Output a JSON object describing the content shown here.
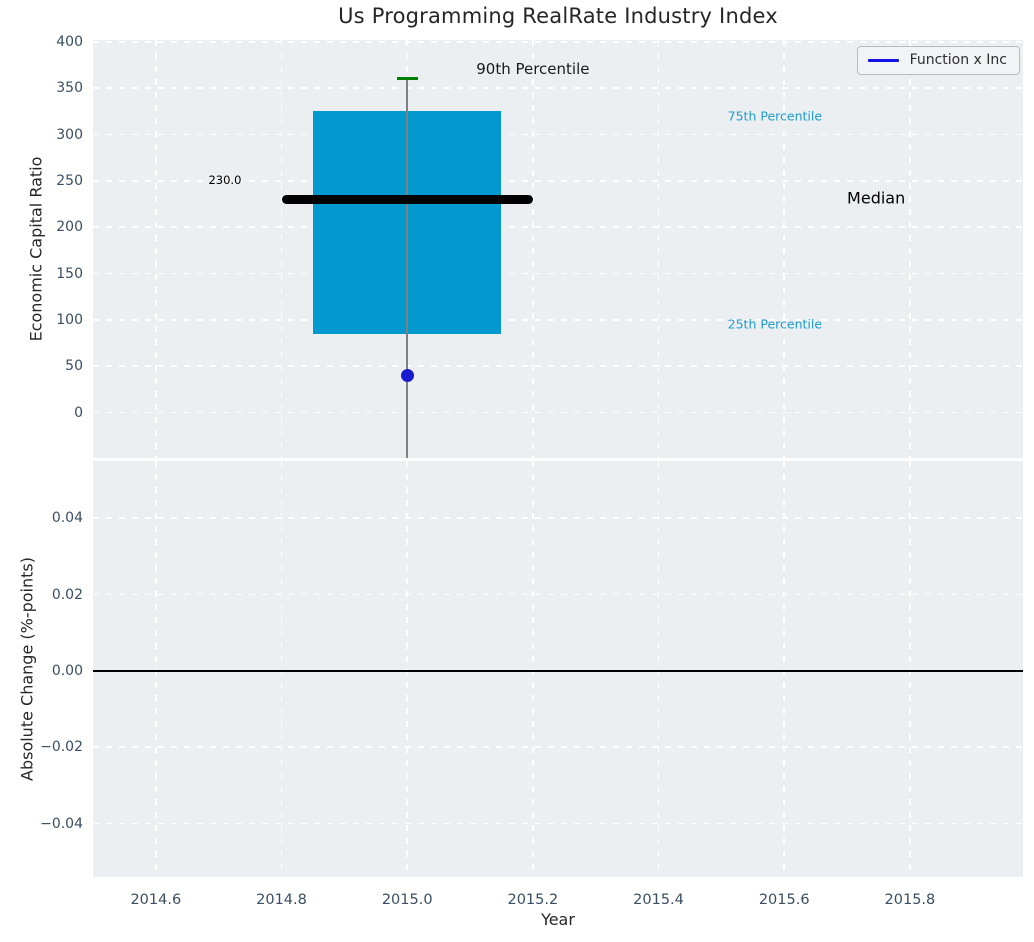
{
  "title": "Us Programming RealRate Industry Index",
  "legend": {
    "label": "Function x Inc"
  },
  "colors": {
    "figure_bg": "#ffffff",
    "axes_bg": "#eceff1",
    "grid": "#ffffff",
    "tick_label": "#3a4e63",
    "axis_label": "#262626",
    "title": "#262626",
    "box_fill": "#0499ce",
    "percentile_label": "#1e9ccd",
    "whisker": "#808080",
    "cap_green": "#008000",
    "median_line": "#000000",
    "company_dot": "#1a1ad1",
    "legend_line": "#1212e6",
    "zero_line": "#000000"
  },
  "chart_data": [
    {
      "type": "boxplot",
      "title": "Us Programming RealRate Industry Index",
      "ylabel": "Economic Capital Ratio",
      "xlim": [
        2014.5,
        2015.98
      ],
      "ylim": [
        -49,
        402
      ],
      "yticks": [
        400,
        350,
        300,
        250,
        200,
        150,
        100,
        50,
        0
      ],
      "ytick_labels": [
        "400",
        "350",
        "300",
        "250",
        "200",
        "150",
        "100",
        "50",
        "0"
      ],
      "xticks": [
        2014.6,
        2014.8,
        2015.0,
        2015.2,
        2015.4,
        2015.6,
        2015.8
      ],
      "grid": true,
      "legend_position": "upper right",
      "box": {
        "x": 2015.0,
        "q1": 85,
        "median": 230,
        "q3": 325,
        "p90": 360,
        "box_half_width": 0.15,
        "median_half_width": 0.2,
        "whisker_clipped_at_axis_bottom": true
      },
      "company_point": {
        "name": "Function x Inc",
        "x": 2015.0,
        "y": 40
      },
      "annotations": [
        {
          "id": "p90-label",
          "text": "90th Percentile",
          "x": 2015.2,
          "y": 371,
          "size": 15,
          "color": "#1a1a1a",
          "align": "center"
        },
        {
          "id": "p75-label",
          "text": "75th Percentile",
          "x": 2015.51,
          "y": 320,
          "size": 12.5,
          "color": "#1e9ccd",
          "align": "left"
        },
        {
          "id": "median-label",
          "text": "Median",
          "x": 2015.7,
          "y": 232,
          "size": 16,
          "color": "#000000",
          "align": "left"
        },
        {
          "id": "p25-label",
          "text": "25th Percentile",
          "x": 2015.51,
          "y": 96,
          "size": 12.5,
          "color": "#1e9ccd",
          "align": "left"
        },
        {
          "id": "median-value-label",
          "text": "230.0",
          "x": 2014.71,
          "y": 251,
          "size": 11.5,
          "color": "#000000",
          "align": "center"
        }
      ]
    },
    {
      "type": "line",
      "ylabel": "Absolute Change (%-points)",
      "xlabel": "Year",
      "xlim": [
        2014.5,
        2015.98
      ],
      "ylim": [
        -0.054,
        0.055
      ],
      "yticks": [
        0.04,
        0.02,
        0.0,
        -0.02,
        -0.04
      ],
      "ytick_labels": [
        "0.04",
        "0.02",
        "0.00",
        "−0.02",
        "−0.04"
      ],
      "xticks": [
        2014.6,
        2014.8,
        2015.0,
        2015.2,
        2015.4,
        2015.6,
        2015.8
      ],
      "xtick_labels": [
        "2014.6",
        "2014.8",
        "2015.0",
        "2015.2",
        "2015.4",
        "2015.6",
        "2015.8"
      ],
      "grid": true,
      "series": [
        {
          "name": "zero-change-line",
          "color": "#000000",
          "style": "solid",
          "y_constant": 0.0
        }
      ]
    }
  ]
}
